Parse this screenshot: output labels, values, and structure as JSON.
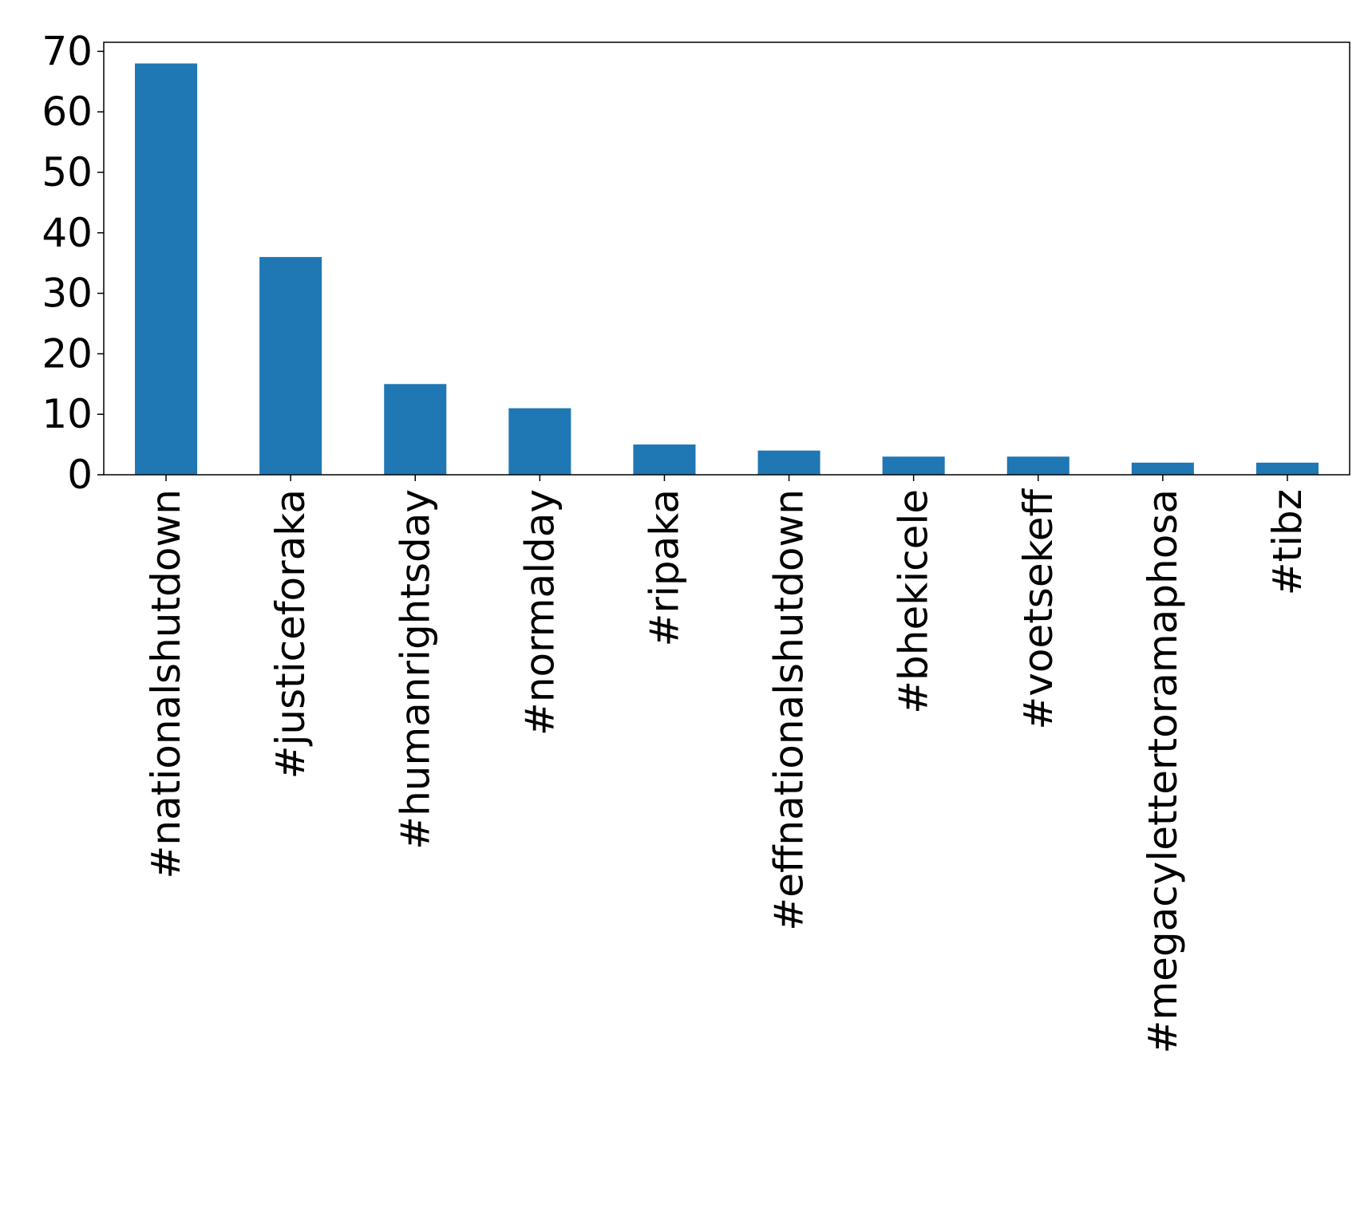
{
  "chart_data": {
    "type": "bar",
    "title": "",
    "xlabel": "",
    "ylabel": "",
    "categories": [
      "#nationalshutdown",
      "#justiceforaka",
      "#humanrightsday",
      "#normalday",
      "#ripaka",
      "#effnationalshutdown",
      "#bhekicele",
      "#voetsekeff",
      "#megacylettertoramaphosa",
      "#tibz"
    ],
    "values": [
      68,
      36,
      15,
      11,
      5,
      4,
      3,
      3,
      2,
      2
    ],
    "ylim": [
      0,
      71.5
    ],
    "yticks": [
      0,
      10,
      20,
      30,
      40,
      50,
      60,
      70
    ],
    "grid": false,
    "legend": "none",
    "bar_color": "#1f77b4"
  }
}
